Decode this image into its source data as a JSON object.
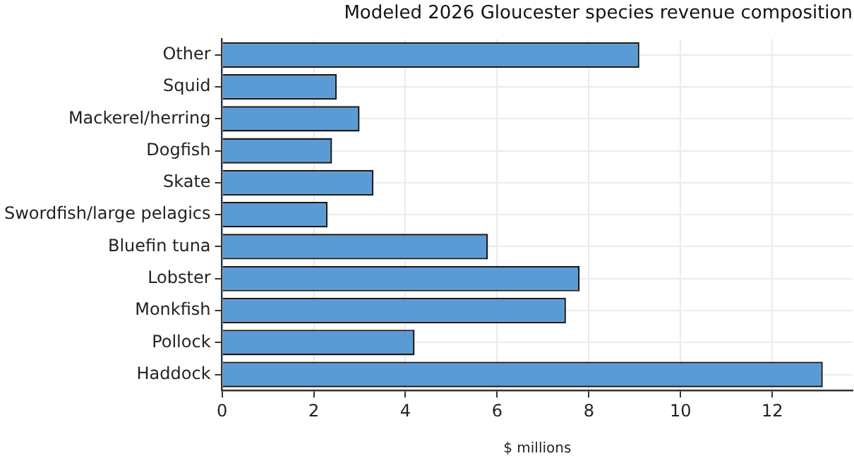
{
  "chart_data": {
    "type": "bar",
    "orientation": "horizontal",
    "title": "Modeled 2026 Gloucester species revenue composition",
    "xlabel": "$ millions",
    "categories": [
      "Other",
      "Squid",
      "Mackerel/herring",
      "Dogfish",
      "Skate",
      "Swordfish/large pelagics",
      "Bluefin tuna",
      "Lobster",
      "Monkfish",
      "Pollock",
      "Haddock"
    ],
    "values": [
      9.1,
      2.5,
      3.0,
      2.4,
      3.3,
      2.3,
      5.8,
      7.8,
      7.5,
      4.2,
      13.1
    ],
    "color": "#5b9bd5",
    "xlim": [
      0,
      13.75
    ],
    "xticks": [
      0,
      2,
      4,
      6,
      8,
      10,
      12
    ],
    "grid": true
  }
}
